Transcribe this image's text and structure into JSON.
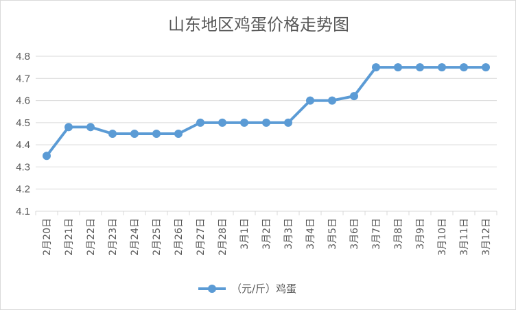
{
  "chart_data": {
    "type": "line",
    "title": "山东地区鸡蛋价格走势图",
    "xlabel": "",
    "ylabel": "",
    "categories": [
      "2月20日",
      "2月21日",
      "2月22日",
      "2月23日",
      "2月24日",
      "2月25日",
      "2月26日",
      "2月27日",
      "2月28日",
      "3月1日",
      "3月2日",
      "3月3日",
      "3月4日",
      "3月5日",
      "3月6日",
      "3月7日",
      "3月8日",
      "3月9日",
      "3月10日",
      "3月11日",
      "3月12日"
    ],
    "series": [
      {
        "name": "（元/斤）鸡蛋",
        "color": "#5b9bd5",
        "values": [
          4.35,
          4.48,
          4.48,
          4.45,
          4.45,
          4.45,
          4.45,
          4.5,
          4.5,
          4.5,
          4.5,
          4.5,
          4.6,
          4.6,
          4.62,
          4.75,
          4.75,
          4.75,
          4.75,
          4.75,
          4.75
        ]
      }
    ],
    "ylim": [
      4.1,
      4.8
    ],
    "yticks": [
      "4.1",
      "4.2",
      "4.3",
      "4.4",
      "4.5",
      "4.6",
      "4.7",
      "4.8"
    ],
    "grid": true,
    "legend": "bottom"
  }
}
